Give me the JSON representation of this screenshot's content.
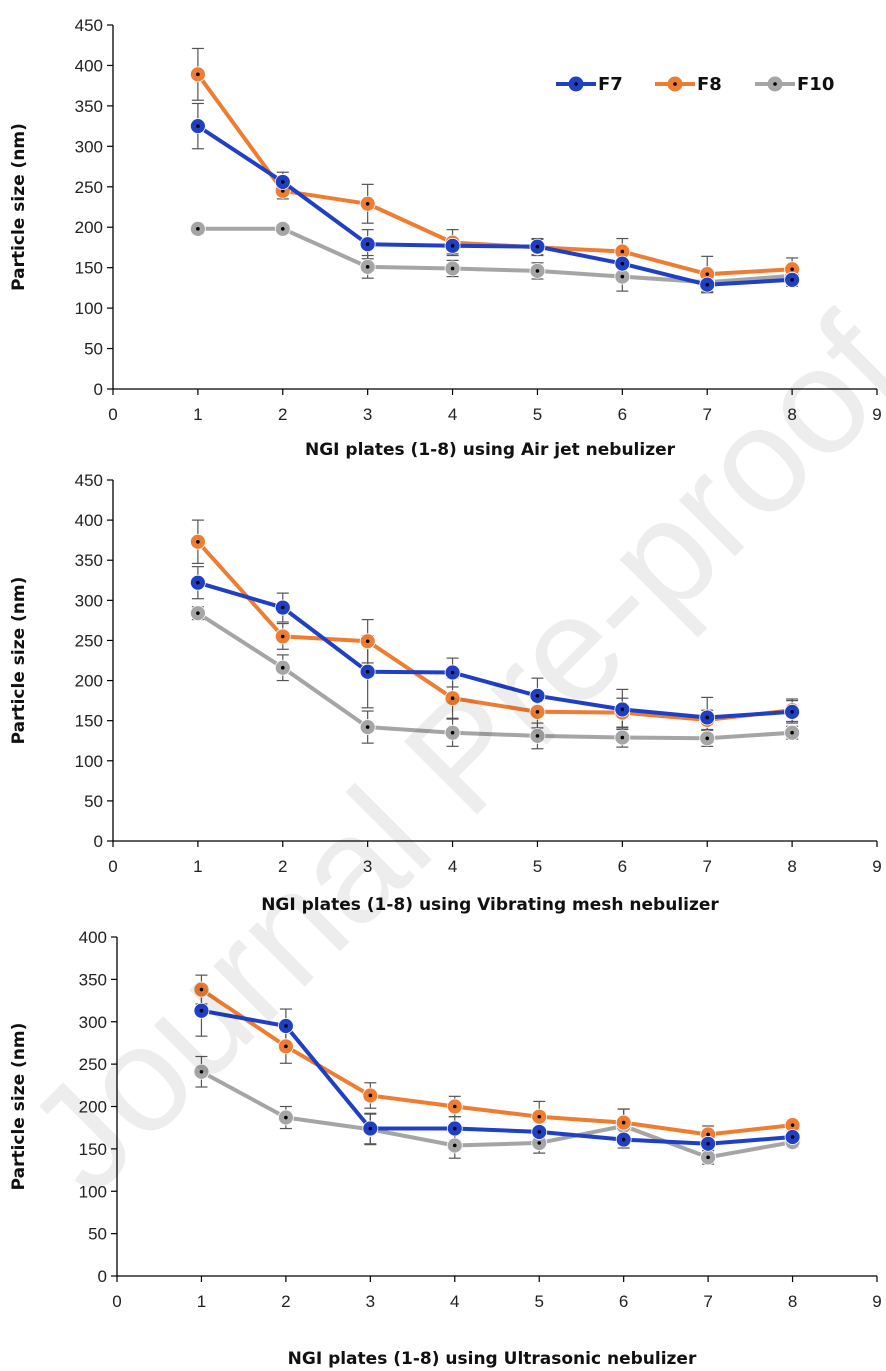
{
  "watermark": "Journal Pre-proof",
  "colors": {
    "F7": "#1f3fc4",
    "F8": "#ee7d31",
    "F10": "#a5a5a5",
    "axis": "#000000"
  },
  "legend": [
    {
      "name": "F7",
      "color": "#1f3fc4"
    },
    {
      "name": "F8",
      "color": "#ee7d31"
    },
    {
      "name": "F10",
      "color": "#a5a5a5"
    }
  ],
  "chart_data": [
    {
      "type": "line",
      "xlabel": "NGI plates (1-8) using Air jet nebulizer",
      "ylabel": "Particle size (nm)",
      "xlim": [
        0,
        9
      ],
      "ylim": [
        0,
        450
      ],
      "x_ticks": [
        0,
        1,
        2,
        3,
        4,
        5,
        6,
        7,
        8,
        9
      ],
      "y_ticks": [
        0,
        50,
        100,
        150,
        200,
        250,
        300,
        350,
        400,
        450
      ],
      "show_legend": true,
      "legend_position": "top-right",
      "x": [
        1,
        2,
        3,
        4,
        5,
        6,
        7,
        8
      ],
      "series": [
        {
          "name": "F7",
          "values": [
            325,
            256,
            179,
            177,
            176,
            155,
            129,
            135
          ],
          "errors": [
            28,
            12,
            18,
            10,
            10,
            18,
            10,
            8
          ]
        },
        {
          "name": "F8",
          "values": [
            389,
            245,
            229,
            181,
            175,
            170,
            142,
            148
          ],
          "errors": [
            32,
            10,
            24,
            16,
            10,
            16,
            22,
            14
          ]
        },
        {
          "name": "F10",
          "values": [
            198,
            198,
            151,
            149,
            146,
            139,
            132,
            140
          ],
          "errors": [
            6,
            5,
            14,
            10,
            10,
            18,
            12,
            8
          ]
        }
      ]
    },
    {
      "type": "line",
      "xlabel": "NGI plates (1-8) using Vibrating mesh nebulizer",
      "ylabel": "Particle size (nm)",
      "xlim": [
        0,
        9
      ],
      "ylim": [
        0,
        450
      ],
      "x_ticks": [
        0,
        1,
        2,
        3,
        4,
        5,
        6,
        7,
        8,
        9
      ],
      "y_ticks": [
        0,
        50,
        100,
        150,
        200,
        250,
        300,
        350,
        400,
        450
      ],
      "show_legend": false,
      "x": [
        1,
        2,
        3,
        4,
        5,
        6,
        7,
        8
      ],
      "series": [
        {
          "name": "F7",
          "values": [
            322,
            291,
            211,
            210,
            181,
            164,
            154,
            161
          ],
          "errors": [
            20,
            18,
            45,
            18,
            22,
            25,
            25,
            14
          ]
        },
        {
          "name": "F8",
          "values": [
            373,
            255,
            249,
            178,
            161,
            160,
            151,
            163
          ],
          "errors": [
            27,
            16,
            27,
            25,
            20,
            18,
            12,
            14
          ]
        },
        {
          "name": "F10",
          "values": [
            284,
            216,
            142,
            135,
            131,
            129,
            128,
            135
          ],
          "errors": [
            8,
            16,
            20,
            17,
            16,
            12,
            10,
            8
          ]
        }
      ]
    },
    {
      "type": "line",
      "xlabel": "NGI plates (1-8) using Ultrasonic nebulizer",
      "ylabel": "Particle size (nm)",
      "xlim": [
        0,
        9
      ],
      "ylim": [
        0,
        400
      ],
      "x_ticks": [
        0,
        1,
        2,
        3,
        4,
        5,
        6,
        7,
        8,
        9
      ],
      "y_ticks": [
        0,
        50,
        100,
        150,
        200,
        250,
        300,
        350,
        400
      ],
      "show_legend": false,
      "x": [
        1,
        2,
        3,
        4,
        5,
        6,
        7,
        8
      ],
      "series": [
        {
          "name": "F7",
          "values": [
            313,
            295,
            174,
            174,
            170,
            161,
            156,
            164
          ],
          "errors": [
            30,
            20,
            18,
            14,
            12,
            10,
            8,
            6
          ]
        },
        {
          "name": "F8",
          "values": [
            338,
            271,
            213,
            200,
            188,
            181,
            167,
            178
          ],
          "errors": [
            17,
            20,
            15,
            12,
            18,
            16,
            10,
            6
          ]
        },
        {
          "name": "F10",
          "values": [
            241,
            187,
            173,
            154,
            157,
            177,
            140,
            158
          ],
          "errors": [
            18,
            13,
            18,
            15,
            12,
            20,
            8,
            6
          ]
        }
      ]
    }
  ]
}
